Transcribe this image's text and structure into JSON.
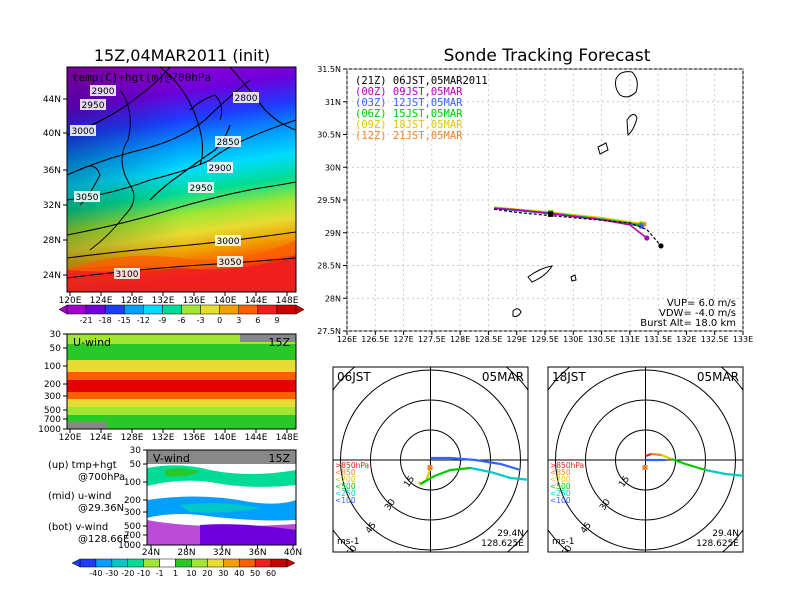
{
  "titles": {
    "map_title": "15Z,04MAR2011 (init)",
    "track_title": "Sonde Tracking Forecast"
  },
  "map_panel": {
    "label": "temp(C)+hgt(m)@700hPa",
    "y_ticks": [
      "44N",
      "40N",
      "36N",
      "32N",
      "28N",
      "24N"
    ],
    "x_ticks": [
      "120E",
      "124E",
      "128E",
      "132E",
      "136E",
      "140E",
      "144E",
      "148E"
    ],
    "contour_labels": [
      "2900",
      "2800",
      "2950",
      "3000",
      "2850",
      "2900",
      "2950",
      "3050",
      "3000",
      "3050",
      "3100"
    ],
    "colorbar_labels": [
      "-21",
      "-18",
      "-15",
      "-12",
      "-9",
      "-6",
      "-3",
      "0",
      "3",
      "6",
      "9"
    ],
    "colorbar_colors": [
      "#a000c8",
      "#6e00dc",
      "#1e3cff",
      "#00a0ff",
      "#00dcff",
      "#00dc96",
      "#a0e632",
      "#e6dc32",
      "#f0a000",
      "#fa6000",
      "#f01e1e",
      "#c80000"
    ]
  },
  "uwind_panel": {
    "label": "U-wind",
    "time": "15Z",
    "y_ticks": [
      "30",
      "50",
      "100",
      "200",
      "300",
      "500",
      "700",
      "1000"
    ],
    "x_ticks": [
      "120E",
      "124E",
      "128E",
      "132E",
      "136E",
      "140E",
      "144E",
      "148E"
    ]
  },
  "vwind_panel": {
    "label": "V-wind",
    "time": "15Z",
    "y_ticks": [
      "30",
      "50",
      "100",
      "200",
      "300",
      "500",
      "700",
      "1000"
    ],
    "x_ticks": [
      "24N",
      "28N",
      "32N",
      "36N",
      "40N"
    ]
  },
  "wind_colorbar": {
    "labels": [
      "-40",
      "-30",
      "-20",
      "-10",
      "-1",
      "1",
      "10",
      "20",
      "30",
      "40",
      "50",
      "60"
    ],
    "colors": [
      "#1e3cff",
      "#00a0ff",
      "#00c8c8",
      "#00dc96",
      "#a0e632",
      "#ffffff",
      "#28c828",
      "#a0e632",
      "#e6dc32",
      "#f0a000",
      "#fa6000",
      "#f01e1e",
      "#c80000"
    ]
  },
  "legend_notes": [
    {
      "line1": "(up) tmp+hgt",
      "line2": "@700hPa"
    },
    {
      "line1": "(mid) u-wind",
      "line2": "@29.36N"
    },
    {
      "line1": "(bot) v-wind",
      "line2": "@128.66E"
    }
  ],
  "chart_data": {
    "type": "line",
    "x_ticks": [
      "126E",
      "126.5E",
      "127E",
      "127.5E",
      "128E",
      "128.5E",
      "129E",
      "129.5E",
      "130E",
      "130.5E",
      "131E",
      "131.5E",
      "132E",
      "132.5E",
      "133E"
    ],
    "y_ticks": [
      "31.5N",
      "31N",
      "30.5N",
      "30N",
      "29.5N",
      "29N",
      "28.5N",
      "28N",
      "27.5N"
    ],
    "xlim": [
      126,
      133
    ],
    "ylim": [
      27.5,
      31.5
    ],
    "grid": true,
    "series": [
      {
        "name": "(21Z) 06JST,05MAR2011",
        "color": "#000000",
        "x": [
          128.6,
          129.0,
          129.5,
          130.0,
          130.5,
          131.0,
          131.3,
          131.55
        ],
        "y": [
          29.36,
          29.31,
          29.27,
          29.23,
          29.19,
          29.15,
          29.05,
          28.8
        ]
      },
      {
        "name": "(00Z) 09JST,05MAR",
        "color": "#b400b4",
        "x": [
          128.6,
          129.0,
          129.5,
          130.0,
          130.5,
          131.0,
          131.3
        ],
        "y": [
          29.37,
          29.35,
          29.3,
          29.25,
          29.2,
          29.12,
          28.92
        ]
      },
      {
        "name": "(03Z) 12JST,05MAR",
        "color": "#3264ff",
        "x": [
          128.6,
          129.5,
          130.5,
          131.2
        ],
        "y": [
          29.37,
          29.3,
          29.2,
          29.1
        ]
      },
      {
        "name": "(06Z) 15JST,05MAR",
        "color": "#00c800",
        "x": [
          128.6,
          129.5,
          130.5,
          131.2
        ],
        "y": [
          29.38,
          29.31,
          29.21,
          29.12
        ]
      },
      {
        "name": "(09Z) 18JST,05MAR",
        "color": "#dcc800",
        "x": [
          128.6,
          129.5,
          130.5,
          131.2
        ],
        "y": [
          29.39,
          29.32,
          29.23,
          29.14
        ]
      },
      {
        "name": "(12Z) 21JST,05MAR",
        "color": "#f08228",
        "x": [
          128.6,
          129.5,
          130.5,
          131.25
        ],
        "y": [
          29.38,
          29.32,
          29.22,
          29.13
        ]
      }
    ],
    "info": [
      "VUP=  6.0  m/s",
      "VDW=  -4.0  m/s",
      "Burst Alt=  18.0  km"
    ]
  },
  "polar_left": {
    "time": "06JST",
    "date": "05MAR",
    "rings": [
      "15",
      "30",
      "45",
      "60"
    ],
    "levels": [
      ">850hPa",
      "<850",
      "<700",
      "<500",
      "<250",
      "<100"
    ],
    "level_colors": [
      "#f01e1e",
      "#f08228",
      "#dcc800",
      "#00c800",
      "#00c8c8",
      "#3264ff"
    ],
    "lat": "29.4N",
    "lon": "128.625E",
    "unit": "ms-1"
  },
  "polar_right": {
    "time": "18JST",
    "date": "05MAR",
    "rings": [
      "15",
      "30",
      "45",
      "60"
    ],
    "levels": [
      ">850hPa",
      "<850",
      "<700",
      "<500",
      "<250",
      "<100"
    ],
    "level_colors": [
      "#f01e1e",
      "#f08228",
      "#dcc800",
      "#00c800",
      "#00c8c8",
      "#3264ff"
    ],
    "lat": "29.4N",
    "lon": "128.625E",
    "unit": "ms-1"
  }
}
